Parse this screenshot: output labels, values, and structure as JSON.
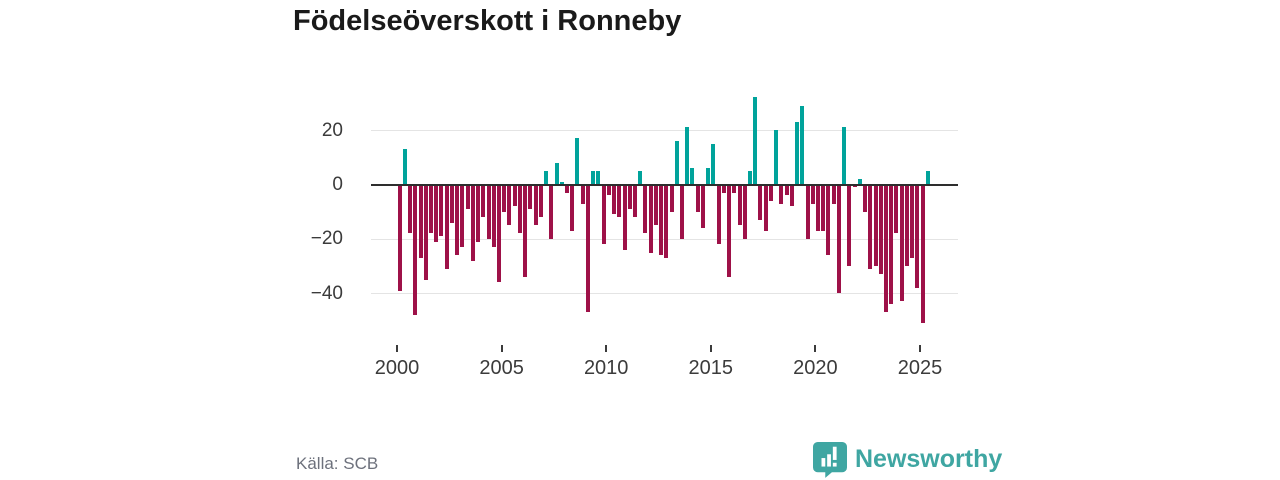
{
  "title": "Födelseöverskott i Ronneby",
  "source": "Källa: SCB",
  "branding": {
    "name": "Newsworthy",
    "logo_icon": "speech-bubble-bar-chart-icon"
  },
  "colors": {
    "positive": "#00a39b",
    "negative": "#9e1148",
    "brand": "#3fa6a2",
    "grid": "#e4e4e4",
    "zero_line": "#2e2e2e",
    "axis_text": "#3b3b3b",
    "muted_text": "#6d717c",
    "title_text": "#1a1a1a"
  },
  "chart_data": {
    "type": "bar",
    "frequency": "quarterly",
    "start_year": 2000,
    "start_quarter": 1,
    "x_ticks": [
      2000,
      2005,
      2010,
      2015,
      2020,
      2025
    ],
    "y_ticks": [
      20,
      0,
      -20,
      -40
    ],
    "y_tick_labels": [
      "20",
      "0",
      "−20",
      "−40"
    ],
    "ylim": [
      -55,
      35
    ],
    "grid": true,
    "legend": false,
    "title": "Födelseöverskott i Ronneby",
    "xlabel": "",
    "ylabel": "",
    "values": [
      -39,
      13,
      -18,
      -48,
      -27,
      -35,
      -18,
      -21,
      -19,
      -31,
      -14,
      -26,
      -23,
      -9,
      -28,
      -21,
      -12,
      -20,
      -23,
      -36,
      -10,
      -15,
      -8,
      -18,
      -34,
      -9,
      -15,
      -12,
      5,
      -20,
      8,
      1,
      -3,
      -17,
      17,
      -7,
      -47,
      5,
      5,
      -22,
      -4,
      -11,
      -12,
      -24,
      -9,
      -12,
      5,
      -18,
      -25,
      -15,
      -26,
      -27,
      -10,
      16,
      -20,
      21,
      6,
      -10,
      -16,
      6,
      15,
      -22,
      -3,
      -34,
      -3,
      -15,
      -20,
      5,
      32,
      -13,
      -17,
      -6,
      20,
      -7,
      -4,
      -8,
      23,
      29,
      -20,
      -7,
      -17,
      -17,
      -26,
      -7,
      -40,
      21,
      -30,
      -1,
      2,
      -10,
      -31,
      -30,
      -33,
      -47,
      -44,
      -18,
      -43,
      -30,
      -27,
      -38,
      -51,
      5
    ]
  }
}
